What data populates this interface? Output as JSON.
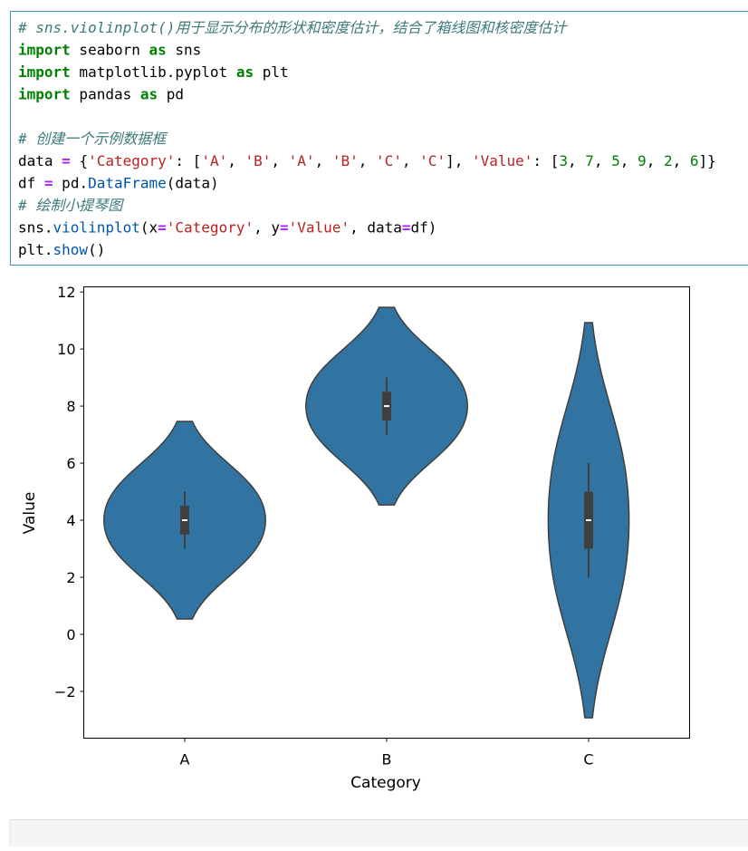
{
  "code": {
    "lines": [
      [
        {
          "s": "com",
          "t": "# sns.violinplot()用于显示分布的形状和密度估计，结合了箱线图和核密度估计"
        }
      ],
      [
        {
          "s": "kw",
          "t": "import"
        },
        {
          "s": "plain",
          "t": " seaborn "
        },
        {
          "s": "kw",
          "t": "as"
        },
        {
          "s": "plain",
          "t": " sns"
        }
      ],
      [
        {
          "s": "kw",
          "t": "import"
        },
        {
          "s": "plain",
          "t": " matplotlib.pyplot "
        },
        {
          "s": "kw",
          "t": "as"
        },
        {
          "s": "plain",
          "t": " plt"
        }
      ],
      [
        {
          "s": "kw",
          "t": "import"
        },
        {
          "s": "plain",
          "t": " pandas "
        },
        {
          "s": "kw",
          "t": "as"
        },
        {
          "s": "plain",
          "t": " pd"
        }
      ],
      [],
      [
        {
          "s": "com",
          "t": "# 创建一个示例数据框"
        }
      ],
      [
        {
          "s": "plain",
          "t": "data "
        },
        {
          "s": "op",
          "t": "="
        },
        {
          "s": "plain",
          "t": " {"
        },
        {
          "s": "str",
          "t": "'Category'"
        },
        {
          "s": "plain",
          "t": ": ["
        },
        {
          "s": "str",
          "t": "'A'"
        },
        {
          "s": "plain",
          "t": ", "
        },
        {
          "s": "str",
          "t": "'B'"
        },
        {
          "s": "plain",
          "t": ", "
        },
        {
          "s": "str",
          "t": "'A'"
        },
        {
          "s": "plain",
          "t": ", "
        },
        {
          "s": "str",
          "t": "'B'"
        },
        {
          "s": "plain",
          "t": ", "
        },
        {
          "s": "str",
          "t": "'C'"
        },
        {
          "s": "plain",
          "t": ", "
        },
        {
          "s": "str",
          "t": "'C'"
        },
        {
          "s": "plain",
          "t": "], "
        },
        {
          "s": "str",
          "t": "'Value'"
        },
        {
          "s": "plain",
          "t": ": ["
        },
        {
          "s": "num",
          "t": "3"
        },
        {
          "s": "plain",
          "t": ", "
        },
        {
          "s": "num",
          "t": "7"
        },
        {
          "s": "plain",
          "t": ", "
        },
        {
          "s": "num",
          "t": "5"
        },
        {
          "s": "plain",
          "t": ", "
        },
        {
          "s": "num",
          "t": "9"
        },
        {
          "s": "plain",
          "t": ", "
        },
        {
          "s": "num",
          "t": "2"
        },
        {
          "s": "plain",
          "t": ", "
        },
        {
          "s": "num",
          "t": "6"
        },
        {
          "s": "plain",
          "t": "]}"
        }
      ],
      [
        {
          "s": "plain",
          "t": "df "
        },
        {
          "s": "op",
          "t": "="
        },
        {
          "s": "plain",
          "t": " pd."
        },
        {
          "s": "fn",
          "t": "DataFrame"
        },
        {
          "s": "plain",
          "t": "(data)"
        }
      ],
      [
        {
          "s": "com",
          "t": "# 绘制小提琴图"
        }
      ],
      [
        {
          "s": "plain",
          "t": "sns."
        },
        {
          "s": "fn",
          "t": "violinplot"
        },
        {
          "s": "plain",
          "t": "(x"
        },
        {
          "s": "op",
          "t": "="
        },
        {
          "s": "str",
          "t": "'Category'"
        },
        {
          "s": "plain",
          "t": ", y"
        },
        {
          "s": "op",
          "t": "="
        },
        {
          "s": "str",
          "t": "'Value'"
        },
        {
          "s": "plain",
          "t": ", data"
        },
        {
          "s": "op",
          "t": "="
        },
        {
          "s": "plain",
          "t": "df)"
        }
      ],
      [
        {
          "s": "plain",
          "t": "plt."
        },
        {
          "s": "fn",
          "t": "show"
        },
        {
          "s": "plain",
          "t": "()"
        }
      ]
    ]
  },
  "chart_data": {
    "type": "violin",
    "categories": [
      "A",
      "B",
      "C"
    ],
    "values": [
      [
        3,
        5
      ],
      [
        7,
        9
      ],
      [
        2,
        6
      ]
    ],
    "color": "#3274a1",
    "edge_color": "#3f3f3f",
    "xlabel": "Category",
    "ylabel": "Value",
    "ylim": [
      -3.64,
      12.18
    ],
    "yticks": [
      {
        "value": -2,
        "label": "−2"
      },
      0,
      2,
      4,
      6,
      8,
      10,
      12
    ]
  }
}
